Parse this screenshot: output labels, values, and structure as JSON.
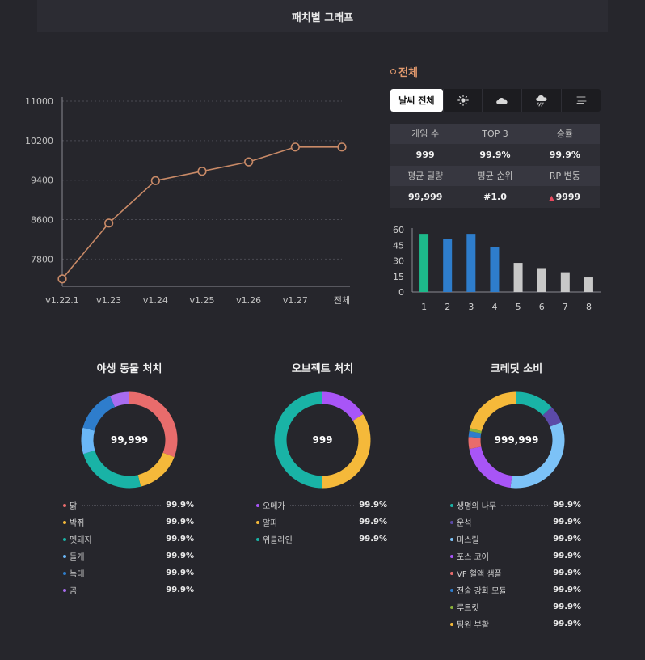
{
  "header": {
    "title": "패치별 그래프"
  },
  "section": {
    "title": "전체"
  },
  "weather_tabs": [
    {
      "label": "날씨 전체",
      "icon": "",
      "active": true
    },
    {
      "label": "",
      "icon": "sun-icon",
      "active": false
    },
    {
      "label": "",
      "icon": "cloud-icon",
      "active": false
    },
    {
      "label": "",
      "icon": "rain-icon",
      "active": false
    },
    {
      "label": "",
      "icon": "fog-icon",
      "active": false
    }
  ],
  "stats": {
    "row1": {
      "headers": [
        "게임 수",
        "TOP 3",
        "승률"
      ],
      "values": [
        "999",
        "99.9%",
        "99.9%"
      ]
    },
    "row2": {
      "headers": [
        "평균 딜량",
        "평균 순위",
        "RP 변동"
      ],
      "values": [
        "99,999",
        "#1.0",
        "9999"
      ]
    },
    "rp_trend": "up",
    "rp_trend_color": "#e84a5f"
  },
  "chart_data": [
    {
      "type": "line",
      "x": [
        "v1.22.1",
        "v1.23",
        "v1.24",
        "v1.25",
        "v1.26",
        "v1.27",
        "전체"
      ],
      "values": [
        7400,
        8530,
        9390,
        9580,
        9770,
        10070,
        10070
      ],
      "ylim": [
        7250,
        11000
      ],
      "yticks": [
        7800,
        8600,
        9400,
        10200,
        11000
      ],
      "grid": true,
      "color": "#c98a67"
    },
    {
      "type": "bar",
      "categories": [
        "1",
        "2",
        "3",
        "4",
        "5",
        "6",
        "7",
        "8"
      ],
      "values": [
        56,
        51,
        56,
        43,
        28,
        23,
        19,
        14
      ],
      "ylim": [
        0,
        60
      ],
      "yticks": [
        0,
        15,
        30,
        45,
        60
      ],
      "colors": [
        "#1db98a",
        "#2e7dcc",
        "#2e7dcc",
        "#2e7dcc",
        "#c8c8c8",
        "#c8c8c8",
        "#c8c8c8",
        "#c8c8c8"
      ]
    }
  ],
  "donuts": [
    {
      "title": "야생 동물 처치",
      "center": "99,999",
      "items": [
        {
          "name": "닭",
          "value": "99.9%",
          "color": "#e86c6c",
          "share": 0.28
        },
        {
          "name": "박쥐",
          "value": "99.9%",
          "color": "#f5b93a",
          "share": 0.14
        },
        {
          "name": "멧돼지",
          "value": "99.9%",
          "color": "#19b3a6",
          "share": 0.22
        },
        {
          "name": "들개",
          "value": "99.9%",
          "color": "#6ab7f7",
          "share": 0.08
        },
        {
          "name": "늑대",
          "value": "99.9%",
          "color": "#2e7dcc",
          "share": 0.13
        },
        {
          "name": "곰",
          "value": "99.9%",
          "color": "#a86cf0",
          "share": 0.06
        }
      ]
    },
    {
      "title": "오브젝트 처치",
      "center": "999",
      "items": [
        {
          "name": "오메가",
          "value": "99.9%",
          "color": "#a855f7",
          "share": 0.16
        },
        {
          "name": "알파",
          "value": "99.9%",
          "color": "#f5b93a",
          "share": 0.34
        },
        {
          "name": "위클라인",
          "value": "99.9%",
          "color": "#19b3a6",
          "share": 0.5
        }
      ]
    },
    {
      "title": "크레딧 소비",
      "center": "999,999",
      "items": [
        {
          "name": "생명의 나무",
          "value": "99.9%",
          "color": "#19b3a6",
          "share": 0.13
        },
        {
          "name": "운석",
          "value": "99.9%",
          "color": "#5c4aa8",
          "share": 0.06
        },
        {
          "name": "미스릴",
          "value": "99.9%",
          "color": "#7cc2f7",
          "share": 0.33
        },
        {
          "name": "포스 코어",
          "value": "99.9%",
          "color": "#a855f7",
          "share": 0.2
        },
        {
          "name": "VF 혈액 샘플",
          "value": "99.9%",
          "color": "#e86c6c",
          "share": 0.04
        },
        {
          "name": "전술 강화 모듈",
          "value": "99.9%",
          "color": "#2e7dcc",
          "share": 0.02
        },
        {
          "name": "루트킷",
          "value": "99.9%",
          "color": "#8bb33a",
          "share": 0.01
        },
        {
          "name": "팀원 부활",
          "value": "99.9%",
          "color": "#f5b93a",
          "share": 0.21
        }
      ]
    }
  ]
}
